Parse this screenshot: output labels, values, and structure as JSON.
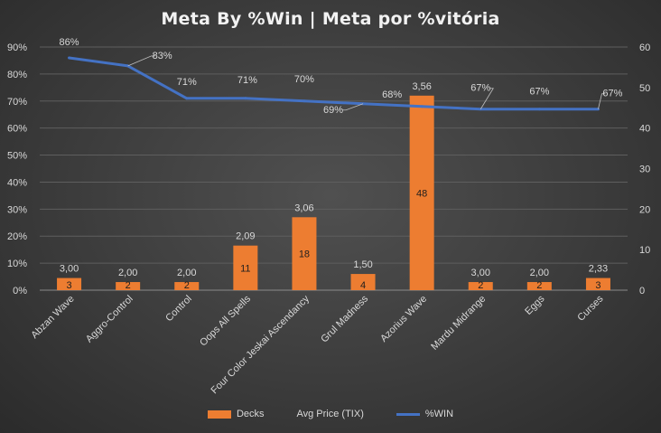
{
  "chart_data": {
    "title": "Meta By %Win  |  Meta por %vitória",
    "type": "bar+line",
    "categories": [
      "Abzan Wave",
      "Aggro-Control",
      "Control",
      "Oops All Spells",
      "Four Color Jeskai Ascendancy",
      "Grul Madness",
      "Azorius Wave",
      "Mardu Midrange",
      "Eggs",
      "Curses"
    ],
    "series": [
      {
        "name": "Decks",
        "type": "bar",
        "axis": "secondary",
        "color": "#ed7d31",
        "values": [
          3,
          2,
          2,
          11,
          18,
          4,
          48,
          2,
          2,
          3
        ],
        "data_labels": [
          "3",
          "2",
          "2",
          "11",
          "18",
          "4",
          "48",
          "2",
          "2",
          "3"
        ]
      },
      {
        "name": "Avg Price (TIX)",
        "type": "labels",
        "values": [
          3.0,
          2.0,
          2.0,
          2.09,
          3.06,
          1.5,
          3.56,
          3.0,
          2.0,
          2.33
        ],
        "data_labels": [
          "3,00",
          "2,00",
          "2,00",
          "2,09",
          "3,06",
          "1,50",
          "3,56",
          "3,00",
          "2,00",
          "2,33"
        ]
      },
      {
        "name": "%WIN",
        "type": "line",
        "axis": "primary",
        "color": "#4472c4",
        "values": [
          86,
          83,
          71,
          71,
          70,
          69,
          68,
          67,
          67,
          67
        ],
        "data_labels": [
          "86%",
          "83%",
          "71%",
          "71%",
          "70%",
          "69%",
          "68%",
          "67%",
          "67%",
          "67%"
        ]
      }
    ],
    "y_left": {
      "ticks": [
        "0%",
        "10%",
        "20%",
        "30%",
        "40%",
        "50%",
        "60%",
        "70%",
        "80%",
        "90%"
      ],
      "ylim": [
        0,
        90
      ]
    },
    "y_right": {
      "ticks": [
        "0",
        "10",
        "20",
        "30",
        "40",
        "50",
        "60"
      ],
      "ylim": [
        0,
        60
      ]
    },
    "grid": true,
    "legend_position": "bottom"
  }
}
